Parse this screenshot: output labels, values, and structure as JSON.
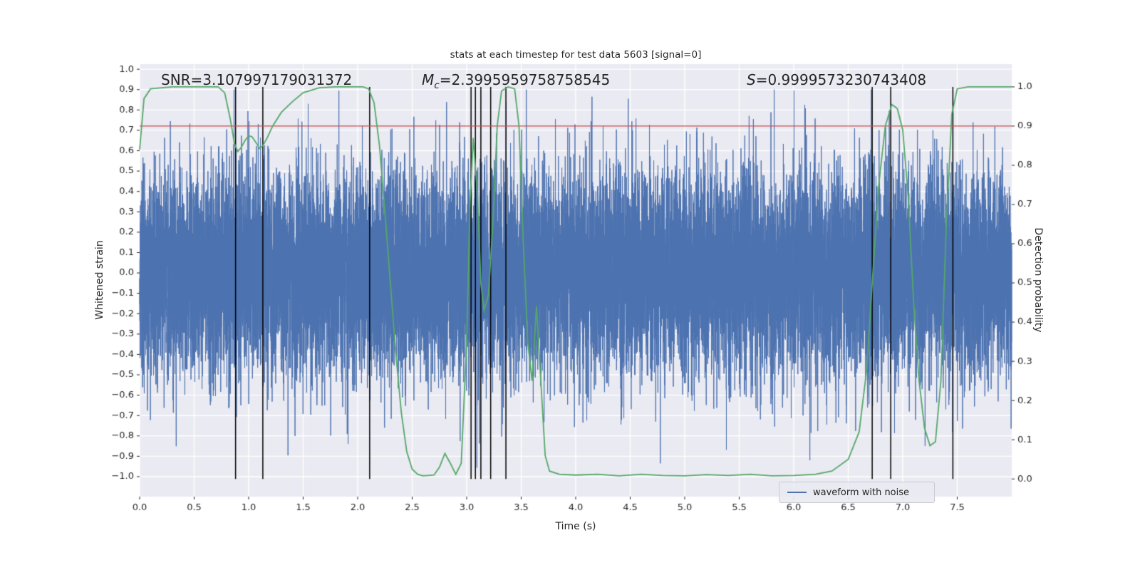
{
  "title": "stats at each timestep for test data 5603 [signal=0]",
  "annotations": {
    "snr": {
      "text": "SNR=3.107997179031372"
    },
    "mc": {
      "prefix": "M",
      "sub": "c",
      "rest": "=2.3995959758758545"
    },
    "s": {
      "prefix": "S",
      "rest": "=0.9999573230743408"
    }
  },
  "legend": {
    "label": "waveform with noise"
  },
  "axes": {
    "xlabel": "Time (s)",
    "ylabel_left": "Whitened strain",
    "ylabel_right": "Detection probability"
  },
  "chart_data": {
    "type": "line",
    "title": "stats at each timestep for test data 5603 [signal=0]",
    "xlabel": "Time (s)",
    "ylabel_left": "Whitened strain",
    "ylabel_right": "Detection probability",
    "stats": {
      "SNR": 3.107997179031372,
      "Mc": 2.3995959758758545,
      "S": 0.9999573230743408,
      "signal": 0,
      "test_data_id": 5603
    },
    "xlim": [
      0,
      8
    ],
    "ylim_left": [
      -1.098,
      1.025
    ],
    "ylim_right": [
      -0.045,
      1.058
    ],
    "grid": true,
    "legend_position": "lower right",
    "x_ticks": {
      "values": [
        0,
        0.5,
        1,
        1.5,
        2,
        2.5,
        3,
        3.5,
        4,
        4.5,
        5,
        5.5,
        6,
        6.5,
        7,
        7.5
      ],
      "labels": [
        "0.0",
        "0.5",
        "1.0",
        "1.5",
        "2.0",
        "2.5",
        "3.0",
        "3.5",
        "4.0",
        "4.5",
        "5.0",
        "5.5",
        "6.0",
        "6.5",
        "7.0",
        "7.5"
      ]
    },
    "y_ticks_left": {
      "values": [
        1,
        0.9,
        0.8,
        0.7,
        0.6,
        0.5,
        0.4,
        0.3,
        0.2,
        0.1,
        0,
        -0.1,
        -0.2,
        -0.3,
        -0.4,
        -0.5,
        -0.6,
        -0.7,
        -0.8,
        -0.9,
        -1
      ],
      "labels": [
        "1.0",
        "0.9",
        "0.8",
        "0.7",
        "0.6",
        "0.5",
        "0.4",
        "0.3",
        "0.2",
        "0.1",
        "0.0",
        "−0.1",
        "−0.2",
        "−0.3",
        "−0.4",
        "−0.5",
        "−0.6",
        "−0.7",
        "−0.8",
        "−0.9",
        "−1.0"
      ]
    },
    "y_ticks_right": {
      "values": [
        1,
        0.9,
        0.8,
        0.7,
        0.6,
        0.5,
        0.4,
        0.3,
        0.2,
        0.1,
        0
      ],
      "labels": [
        "1.0",
        "0.9",
        "0.8",
        "0.7",
        "0.6",
        "0.5",
        "0.4",
        "0.3",
        "0.2",
        "0.1",
        "0.0"
      ]
    },
    "colors": {
      "waveform": "#4c72b0",
      "detection": "#55a868",
      "threshold": "#c44e52",
      "vline": "#000000",
      "axes_background": "#eaeaf2",
      "grid": "#ffffff",
      "text": "#262626"
    },
    "threshold": {
      "axis": "right",
      "value": 0.9
    },
    "vlines": [
      0.88,
      1.13,
      2.11,
      3.04,
      3.08,
      3.13,
      3.22,
      3.36,
      6.72,
      6.89,
      7.46
    ],
    "detection_probability": {
      "axis": "right",
      "points": [
        [
          0,
          0.84
        ],
        [
          0.04,
          0.97
        ],
        [
          0.1,
          0.995
        ],
        [
          0.3,
          1
        ],
        [
          0.72,
          1
        ],
        [
          0.78,
          0.985
        ],
        [
          0.83,
          0.92
        ],
        [
          0.87,
          0.855
        ],
        [
          0.9,
          0.835
        ],
        [
          0.93,
          0.845
        ],
        [
          0.97,
          0.865
        ],
        [
          1,
          0.875
        ],
        [
          1.03,
          0.873
        ],
        [
          1.07,
          0.857
        ],
        [
          1.1,
          0.843
        ],
        [
          1.13,
          0.85
        ],
        [
          1.17,
          0.87
        ],
        [
          1.22,
          0.9
        ],
        [
          1.3,
          0.935
        ],
        [
          1.4,
          0.962
        ],
        [
          1.5,
          0.985
        ],
        [
          1.65,
          0.998
        ],
        [
          1.8,
          1
        ],
        [
          2.05,
          1
        ],
        [
          2.1,
          0.995
        ],
        [
          2.15,
          0.96
        ],
        [
          2.2,
          0.85
        ],
        [
          2.25,
          0.68
        ],
        [
          2.3,
          0.5
        ],
        [
          2.35,
          0.32
        ],
        [
          2.4,
          0.17
        ],
        [
          2.45,
          0.07
        ],
        [
          2.5,
          0.025
        ],
        [
          2.55,
          0.012
        ],
        [
          2.6,
          0.008
        ],
        [
          2.7,
          0.01
        ],
        [
          2.75,
          0.03
        ],
        [
          2.8,
          0.065
        ],
        [
          2.85,
          0.04
        ],
        [
          2.9,
          0.012
        ],
        [
          2.95,
          0.04
        ],
        [
          3,
          0.35
        ],
        [
          3.03,
          0.7
        ],
        [
          3.06,
          0.87
        ],
        [
          3.1,
          0.72
        ],
        [
          3.13,
          0.5
        ],
        [
          3.16,
          0.43
        ],
        [
          3.2,
          0.47
        ],
        [
          3.24,
          0.65
        ],
        [
          3.28,
          0.9
        ],
        [
          3.32,
          0.99
        ],
        [
          3.38,
          1
        ],
        [
          3.44,
          0.995
        ],
        [
          3.48,
          0.9
        ],
        [
          3.52,
          0.6
        ],
        [
          3.56,
          0.35
        ],
        [
          3.6,
          0.25
        ],
        [
          3.64,
          0.44
        ],
        [
          3.68,
          0.25
        ],
        [
          3.72,
          0.06
        ],
        [
          3.76,
          0.02
        ],
        [
          3.85,
          0.012
        ],
        [
          4,
          0.01
        ],
        [
          4.2,
          0.012
        ],
        [
          4.4,
          0.008
        ],
        [
          4.6,
          0.012
        ],
        [
          4.8,
          0.009
        ],
        [
          5,
          0.008
        ],
        [
          5.2,
          0.011
        ],
        [
          5.4,
          0.009
        ],
        [
          5.6,
          0.012
        ],
        [
          5.8,
          0.008
        ],
        [
          6,
          0.009
        ],
        [
          6.2,
          0.012
        ],
        [
          6.35,
          0.02
        ],
        [
          6.5,
          0.05
        ],
        [
          6.6,
          0.12
        ],
        [
          6.67,
          0.28
        ],
        [
          6.72,
          0.5
        ],
        [
          6.78,
          0.75
        ],
        [
          6.84,
          0.9
        ],
        [
          6.9,
          0.955
        ],
        [
          6.95,
          0.945
        ],
        [
          7,
          0.89
        ],
        [
          7.05,
          0.72
        ],
        [
          7.1,
          0.45
        ],
        [
          7.15,
          0.25
        ],
        [
          7.2,
          0.13
        ],
        [
          7.25,
          0.085
        ],
        [
          7.3,
          0.095
        ],
        [
          7.35,
          0.25
        ],
        [
          7.4,
          0.65
        ],
        [
          7.45,
          0.93
        ],
        [
          7.5,
          0.995
        ],
        [
          7.6,
          1
        ],
        [
          8,
          1
        ]
      ]
    },
    "waveform": {
      "axis": "left",
      "kind": "gaussian-noise",
      "sigma": 0.25,
      "n_points": 16384,
      "seed": 5603,
      "clip": [
        -1.0,
        0.9
      ]
    }
  }
}
